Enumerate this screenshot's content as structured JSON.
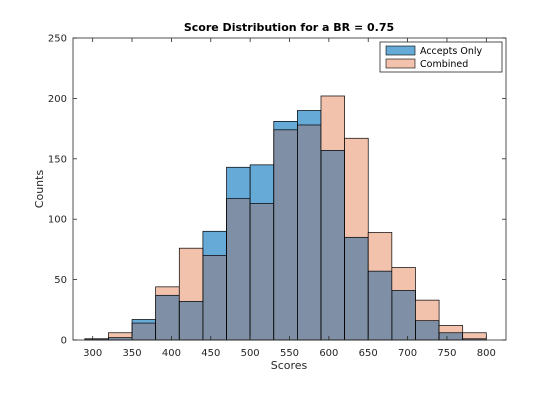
{
  "chart_data": {
    "type": "bar",
    "title": "Score Distribution for a BR = 0.75",
    "xlabel": "Scores",
    "ylabel": "Counts",
    "xlim": [
      275,
      825
    ],
    "ylim": [
      0,
      250
    ],
    "xticks": [
      300,
      350,
      400,
      450,
      500,
      550,
      600,
      650,
      700,
      750,
      800
    ],
    "yticks": [
      0,
      50,
      100,
      150,
      200,
      250
    ],
    "bin_edges": [
      290,
      320,
      350,
      380,
      410,
      440,
      470,
      500,
      530,
      560,
      590,
      620,
      650,
      680,
      710,
      740,
      770,
      800
    ],
    "series": [
      {
        "name": "Accepts Only",
        "color": "#0072BD",
        "values": [
          1,
          2,
          17,
          37,
          32,
          90,
          143,
          145,
          181,
          190,
          157,
          85,
          57,
          41,
          16,
          6,
          1
        ]
      },
      {
        "name": "Combined",
        "color": "#F2C2AC",
        "values": [
          1,
          6,
          14,
          44,
          76,
          70,
          117,
          113,
          174,
          178,
          202,
          167,
          89,
          60,
          33,
          12,
          6
        ]
      }
    ],
    "overlap_color": "#7F8FA5",
    "legend_position": "top-right",
    "grid": false
  }
}
